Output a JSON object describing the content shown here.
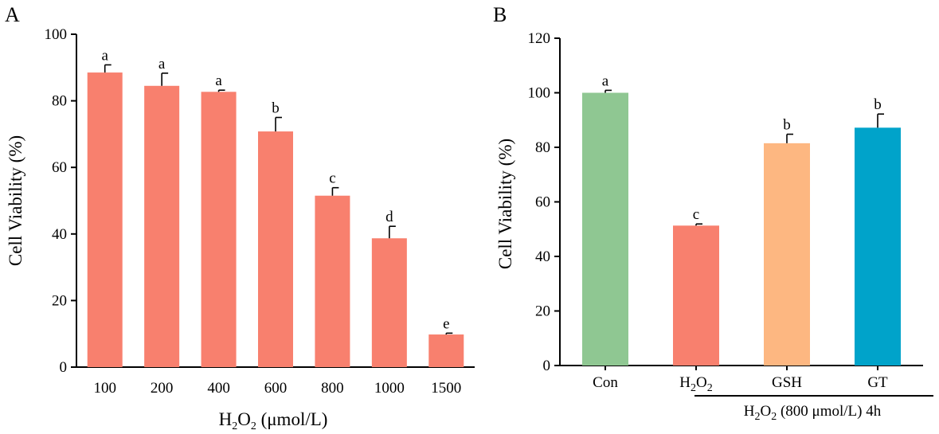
{
  "figure": {
    "panel_a_label": "A",
    "panel_b_label": "B"
  },
  "chart_data": [
    {
      "panel": "A",
      "type": "bar",
      "categories": [
        "100",
        "200",
        "400",
        "600",
        "800",
        "1000",
        "1500"
      ],
      "values": [
        88.5,
        84.5,
        82.7,
        70.8,
        51.5,
        38.7,
        9.8
      ],
      "errors": [
        2.3,
        3.8,
        0.5,
        4.2,
        2.4,
        3.6,
        0.4
      ],
      "significance": [
        "a",
        "a",
        "a",
        "b",
        "c",
        "d",
        "e"
      ],
      "bar_color": "#F8806E",
      "xlabel_base": "H",
      "xlabel_sub1": "2",
      "xlabel_mid": "O",
      "xlabel_sub2": "2",
      "xlabel_tail": " (μmol/L)",
      "ylabel": "Cell Viability (%)",
      "ylim": [
        0,
        100
      ],
      "yticks": [
        "0",
        "20",
        "40",
        "60",
        "80",
        "100"
      ],
      "grid": false
    },
    {
      "panel": "B",
      "type": "bar",
      "categories": [
        "Con",
        "H2O2",
        "GSH",
        "GT"
      ],
      "values": [
        100.0,
        51.3,
        81.5,
        87.2
      ],
      "errors": [
        0.9,
        0.6,
        3.3,
        5.0
      ],
      "significance": [
        "a",
        "c",
        "b",
        "b"
      ],
      "bar_colors": [
        "#8FC792",
        "#F8806E",
        "#FDB781",
        "#00A3CA"
      ],
      "ylabel": "Cell Viability (%)",
      "ylim": [
        0,
        120
      ],
      "yticks": [
        "0",
        "20",
        "40",
        "60",
        "80",
        "100",
        "120"
      ],
      "treatment_label": "H2O2 (800 μmol/L) 4h",
      "grid": false
    }
  ]
}
